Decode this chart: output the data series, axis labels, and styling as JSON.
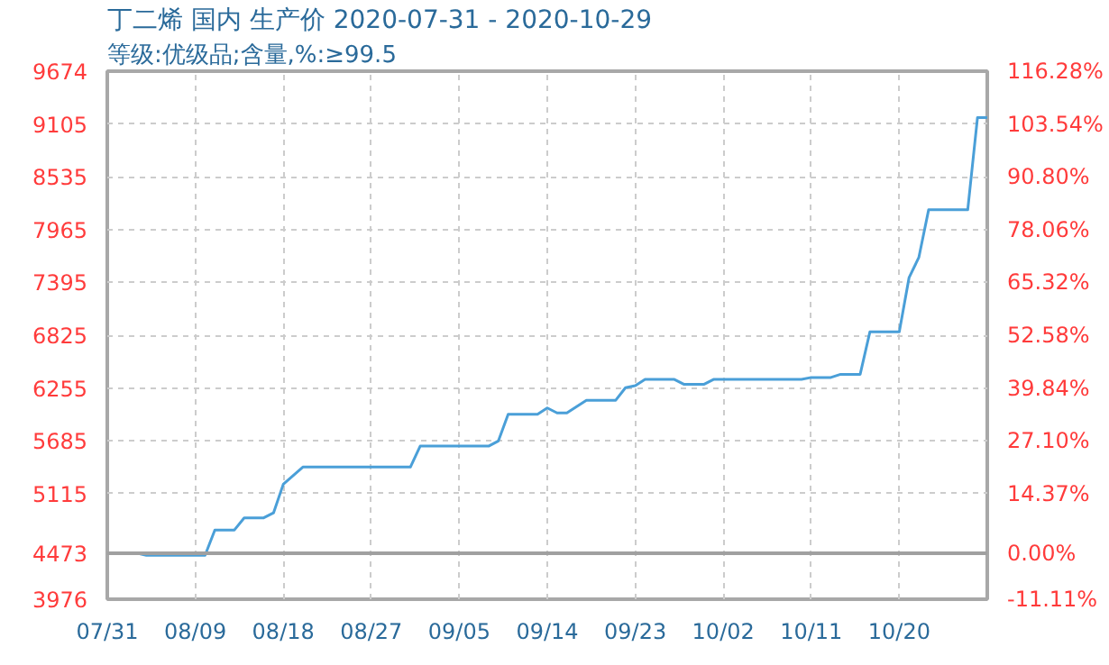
{
  "chart_data": {
    "type": "line",
    "title": "丁二烯 国内 生产价 2020-07-31 - 2020-10-29",
    "subtitle": "等级:优级品;含量,%:≥99.5",
    "x": [
      "2020-07-31",
      "2020-08-03",
      "2020-08-04",
      "2020-08-10",
      "2020-08-11",
      "2020-08-13",
      "2020-08-14",
      "2020-08-16",
      "2020-08-17",
      "2020-08-18",
      "2020-08-20",
      "2020-08-31",
      "2020-09-01",
      "2020-09-08",
      "2020-09-09",
      "2020-09-10",
      "2020-09-13",
      "2020-09-14",
      "2020-09-15",
      "2020-09-16",
      "2020-09-18",
      "2020-09-21",
      "2020-09-22",
      "2020-09-23",
      "2020-09-24",
      "2020-09-27",
      "2020-09-28",
      "2020-09-30",
      "2020-10-01",
      "2020-10-10",
      "2020-10-11",
      "2020-10-13",
      "2020-10-14",
      "2020-10-16",
      "2020-10-17",
      "2020-10-20",
      "2020-10-21",
      "2020-10-22",
      "2020-10-23",
      "2020-10-27",
      "2020-10-28",
      "2020-10-29"
    ],
    "series": [
      {
        "color": "#4a9fd8",
        "values": [
          4473,
          4473,
          4450,
          4450,
          4723,
          4723,
          4854,
          4854,
          4908,
          5217,
          5402,
          5402,
          5628,
          5628,
          5684,
          5971,
          5971,
          6040,
          5986,
          5986,
          6123,
          6123,
          6259,
          6280,
          6348,
          6348,
          6294,
          6294,
          6348,
          6348,
          6369,
          6369,
          6403,
          6403,
          6862,
          6862,
          7446,
          7664,
          8178,
          8178,
          9174,
          9174
        ]
      }
    ],
    "xlim": [
      "2020-07-31",
      "2020-10-29"
    ],
    "xticks": [
      {
        "value": "2020-07-31",
        "label": "07/31"
      },
      {
        "value": "2020-08-09",
        "label": "08/09"
      },
      {
        "value": "2020-08-18",
        "label": "08/18"
      },
      {
        "value": "2020-08-27",
        "label": "08/27"
      },
      {
        "value": "2020-09-05",
        "label": "09/05"
      },
      {
        "value": "2020-09-14",
        "label": "09/14"
      },
      {
        "value": "2020-09-23",
        "label": "09/23"
      },
      {
        "value": "2020-10-02",
        "label": "10/02"
      },
      {
        "value": "2020-10-11",
        "label": "10/11"
      },
      {
        "value": "2020-10-20",
        "label": "10/20"
      }
    ],
    "ylim": [
      3976,
      9674
    ],
    "yticks": [
      3976,
      4473,
      5115,
      5685,
      6255,
      6825,
      7395,
      7965,
      8535,
      9105,
      9674
    ],
    "y2lim": [
      -11.11,
      116.28
    ],
    "y2ticks": [
      {
        "value": -11.11,
        "label": "-11.11%"
      },
      {
        "value": 0,
        "label": "0.00%"
      },
      {
        "value": 14.37,
        "label": "14.37%"
      },
      {
        "value": 27.1,
        "label": "27.10%"
      },
      {
        "value": 39.84,
        "label": "39.84%"
      },
      {
        "value": 52.58,
        "label": "52.58%"
      },
      {
        "value": 65.32,
        "label": "65.32%"
      },
      {
        "value": 78.06,
        "label": "78.06%"
      },
      {
        "value": 90.8,
        "label": "90.80%"
      },
      {
        "value": 103.54,
        "label": "103.54%"
      },
      {
        "value": 116.28,
        "label": "116.28%"
      }
    ],
    "ref_lines": [
      {
        "axis": "y",
        "value": 4473,
        "color": "#a0a0a0",
        "line_style": "solid"
      }
    ],
    "grid": true,
    "marker": "none",
    "line_style": "solid"
  }
}
